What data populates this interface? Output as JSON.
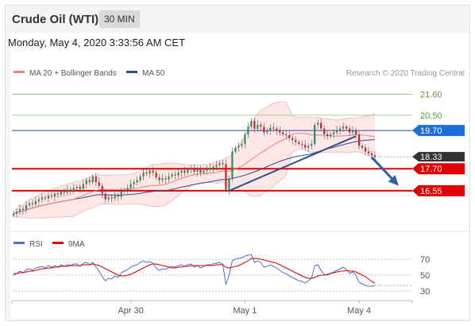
{
  "header": {
    "title": "Crude Oil (WTI)",
    "timeframe": "30 MIN"
  },
  "datetime": "Monday, May 4, 2020 3:33:56 AM CET",
  "legend": {
    "bollinger": {
      "label": "MA 20 + Bollinger Bands",
      "color": "#f08080"
    },
    "ma50": {
      "label": "MA 50",
      "color": "#2f4f8f"
    },
    "credit": "Research © 2020 Trading Central"
  },
  "colors": {
    "up": "#2e8b57",
    "down": "#cc2222",
    "support": "#e00000",
    "resistance": "#90c070",
    "ma50": "#2f4f8f",
    "rsi": "#4a6fd8",
    "rsi_ma": "#e00000",
    "last": "#333333",
    "arrow": "#2e60a8"
  },
  "chart_data": [
    {
      "type": "candlestick",
      "ylim": [
        14.8,
        22.2
      ],
      "x_ticks": [
        {
          "label": "Apr 30",
          "index": 37
        },
        {
          "label": "May 1",
          "index": 73
        },
        {
          "label": "May 4",
          "index": 109
        }
      ],
      "levels": [
        {
          "value": 21.6,
          "label": "21.60",
          "kind": "resistance"
        },
        {
          "value": 20.5,
          "label": "20.50",
          "kind": "resistance"
        },
        {
          "value": 19.7,
          "label": "19.70",
          "kind": "pivot"
        },
        {
          "value": 17.7,
          "label": "17.70",
          "kind": "support"
        },
        {
          "value": 16.55,
          "label": "16.55",
          "kind": "support"
        }
      ],
      "last_price": {
        "value": 18.33,
        "label": "18.33"
      },
      "trendline": {
        "from": [
          68,
          16.55
        ],
        "to": [
          108,
          19.4
        ]
      },
      "forecast_arrow": {
        "from": [
          113,
          18.3
        ],
        "to": [
          121,
          16.9
        ]
      },
      "close": [
        15.35,
        15.45,
        15.6,
        15.55,
        15.8,
        15.9,
        15.85,
        16.0,
        16.1,
        16.2,
        16.15,
        16.3,
        16.25,
        16.4,
        16.35,
        16.5,
        16.45,
        16.6,
        16.55,
        16.7,
        16.75,
        16.65,
        16.9,
        17.1,
        17.0,
        17.3,
        17.0,
        16.8,
        16.4,
        16.1,
        16.2,
        16.15,
        16.3,
        16.25,
        16.5,
        16.6,
        16.7,
        16.9,
        17.0,
        17.1,
        17.3,
        17.5,
        17.45,
        17.6,
        17.5,
        17.25,
        17.1,
        17.2,
        17.15,
        17.3,
        17.4,
        17.35,
        17.5,
        17.6,
        17.5,
        17.65,
        17.7,
        17.55,
        17.65,
        17.5,
        17.6,
        17.7,
        17.75,
        17.8,
        17.9,
        18.0,
        17.95,
        16.6,
        17.2,
        18.6,
        18.8,
        18.9,
        19.0,
        19.5,
        19.9,
        20.2,
        19.8,
        20.0,
        19.9,
        19.6,
        19.7,
        19.85,
        19.8,
        19.7,
        19.6,
        19.5,
        19.45,
        19.3,
        19.2,
        19.1,
        19.0,
        18.95,
        18.8,
        18.9,
        19.0,
        20.0,
        20.1,
        19.8,
        19.5,
        19.4,
        19.5,
        19.6,
        19.7,
        19.8,
        19.9,
        19.8,
        19.6,
        19.7,
        19.5,
        18.9,
        18.8,
        18.6,
        18.5,
        18.4,
        18.33
      ]
    },
    {
      "type": "line",
      "name": "RSI",
      "ylabel": "",
      "ylim": [
        22,
        78
      ],
      "y_ticks": [
        70,
        50,
        30
      ],
      "series": [
        {
          "name": "RSI",
          "values": [
            50,
            52,
            55,
            53,
            57,
            58,
            56,
            59,
            60,
            61,
            59,
            62,
            60,
            62,
            60,
            63,
            61,
            63,
            62,
            64,
            64,
            61,
            65,
            66,
            63,
            66,
            60,
            55,
            48,
            43,
            46,
            45,
            49,
            47,
            53,
            55,
            57,
            60,
            62,
            63,
            66,
            68,
            66,
            67,
            65,
            59,
            56,
            58,
            57,
            60,
            61,
            60,
            62,
            63,
            61,
            63,
            64,
            60,
            62,
            59,
            61,
            63,
            63,
            64,
            65,
            66,
            64,
            38,
            50,
            68,
            70,
            71,
            72,
            74,
            75,
            76,
            66,
            68,
            66,
            60,
            61,
            63,
            61,
            59,
            56,
            53,
            52,
            49,
            47,
            45,
            43,
            42,
            40,
            43,
            46,
            62,
            63,
            56,
            51,
            50,
            52,
            54,
            56,
            58,
            60,
            57,
            52,
            54,
            50,
            41,
            39,
            37,
            36,
            36,
            37
          ]
        },
        {
          "name": "9MA",
          "values": [
            52,
            52,
            53,
            53,
            54,
            55,
            55,
            56,
            57,
            58,
            58,
            59,
            59,
            60,
            60,
            61,
            61,
            61,
            62,
            62,
            62,
            62,
            63,
            63,
            63,
            64,
            63,
            62,
            60,
            58,
            56,
            54,
            52,
            50,
            49,
            49,
            50,
            51,
            53,
            55,
            57,
            59,
            61,
            63,
            64,
            64,
            63,
            62,
            61,
            60,
            59,
            59,
            60,
            60,
            61,
            61,
            62,
            62,
            62,
            62,
            62,
            62,
            62,
            62,
            63,
            63,
            63,
            60,
            59,
            60,
            61,
            62,
            64,
            66,
            68,
            71,
            71,
            71,
            70,
            69,
            68,
            67,
            66,
            65,
            63,
            61,
            59,
            57,
            55,
            53,
            51,
            49,
            47,
            46,
            46,
            47,
            49,
            50,
            50,
            51,
            52,
            53,
            54,
            55,
            55,
            56,
            55,
            55,
            54,
            52,
            50,
            48,
            45,
            42,
            40
          ]
        }
      ]
    }
  ]
}
